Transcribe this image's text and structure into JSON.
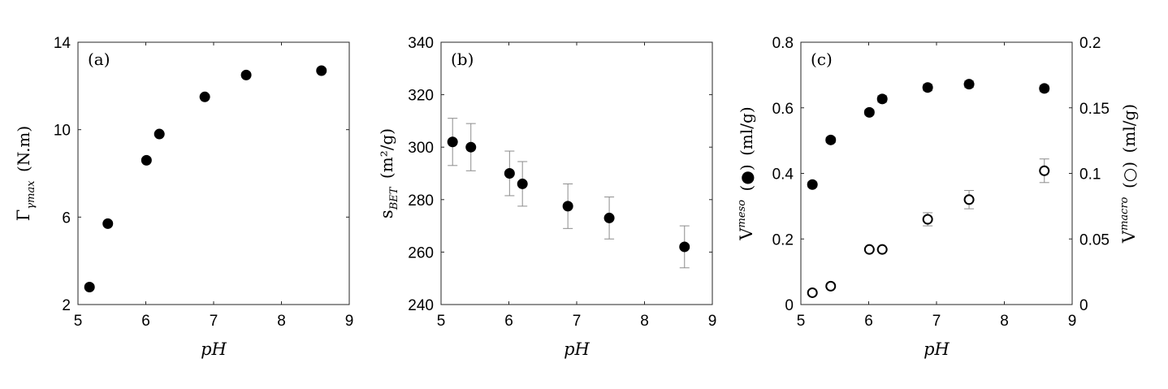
{
  "chart_data": [
    {
      "id": "a",
      "type": "scatter",
      "panel_label": "(a)",
      "xlabel": "pH",
      "ylabel_symbol": "Γ",
      "ylabel_subscript": "γmax",
      "ylabel_unit": "(N.m)",
      "xlim": [
        5,
        9
      ],
      "ylim": [
        2,
        14
      ],
      "xticks": [
        5,
        6,
        7,
        8,
        9
      ],
      "yticks": [
        2,
        6,
        10,
        14
      ],
      "grid": false,
      "series": [
        {
          "marker": "filled-circle",
          "x": [
            5.17,
            5.44,
            6.01,
            6.2,
            6.87,
            7.48,
            8.59
          ],
          "y": [
            2.8,
            5.7,
            8.6,
            9.8,
            11.5,
            12.5,
            12.7
          ]
        }
      ]
    },
    {
      "id": "b",
      "type": "scatter",
      "panel_label": "(b)",
      "xlabel": "pH",
      "ylabel_symbol": "s",
      "ylabel_subscript": "BET",
      "ylabel_unit": "(m²/g)",
      "xlim": [
        5,
        9
      ],
      "ylim": [
        240,
        340
      ],
      "xticks": [
        5,
        6,
        7,
        8,
        9
      ],
      "yticks": [
        240,
        260,
        280,
        300,
        320,
        340
      ],
      "grid": false,
      "series": [
        {
          "marker": "filled-circle",
          "x": [
            5.17,
            5.44,
            6.01,
            6.2,
            6.87,
            7.48,
            8.59
          ],
          "y": [
            302,
            300,
            290,
            286,
            277.5,
            273,
            262
          ],
          "yerr": [
            9,
            9,
            8.5,
            8.5,
            8.5,
            8,
            8
          ]
        }
      ]
    },
    {
      "id": "c",
      "type": "scatter",
      "panel_label": "(c)",
      "xlabel": "pH",
      "ylabel_symbol": "V",
      "ylabel_superscript": "meso",
      "ylabel_marker": "(●)",
      "ylabel_unit": "(ml/g)",
      "y2label_symbol": "V",
      "y2label_superscript": "macro",
      "y2label_marker": "(○)",
      "y2label_unit": "(ml/g)",
      "xlim": [
        5,
        9
      ],
      "ylim": [
        0,
        0.8
      ],
      "y2lim": [
        0,
        0.2
      ],
      "xticks": [
        5,
        6,
        7,
        8,
        9
      ],
      "yticks": [
        0,
        0.2,
        0.4,
        0.6,
        0.8
      ],
      "y2ticks": [
        0,
        0.05,
        0.1,
        0.15,
        0.2
      ],
      "grid": false,
      "series": [
        {
          "marker": "filled-circle",
          "axis": "left",
          "x": [
            5.17,
            5.44,
            6.01,
            6.2,
            6.87,
            7.48,
            8.59
          ],
          "y": [
            0.366,
            0.502,
            0.586,
            0.627,
            0.662,
            0.672,
            0.659
          ],
          "yerr": [
            0.008,
            0.008,
            0.008,
            0.01,
            0.01,
            0.01,
            0.01
          ]
        },
        {
          "marker": "open-circle",
          "axis": "right",
          "x": [
            5.17,
            5.44,
            6.01,
            6.2,
            6.87,
            7.48,
            8.59
          ],
          "y": [
            0.009,
            0.014,
            0.042,
            0.042,
            0.065,
            0.08,
            0.102
          ],
          "yerr": [
            0,
            0,
            0,
            0,
            0.005,
            0.007,
            0.009
          ]
        }
      ]
    }
  ]
}
